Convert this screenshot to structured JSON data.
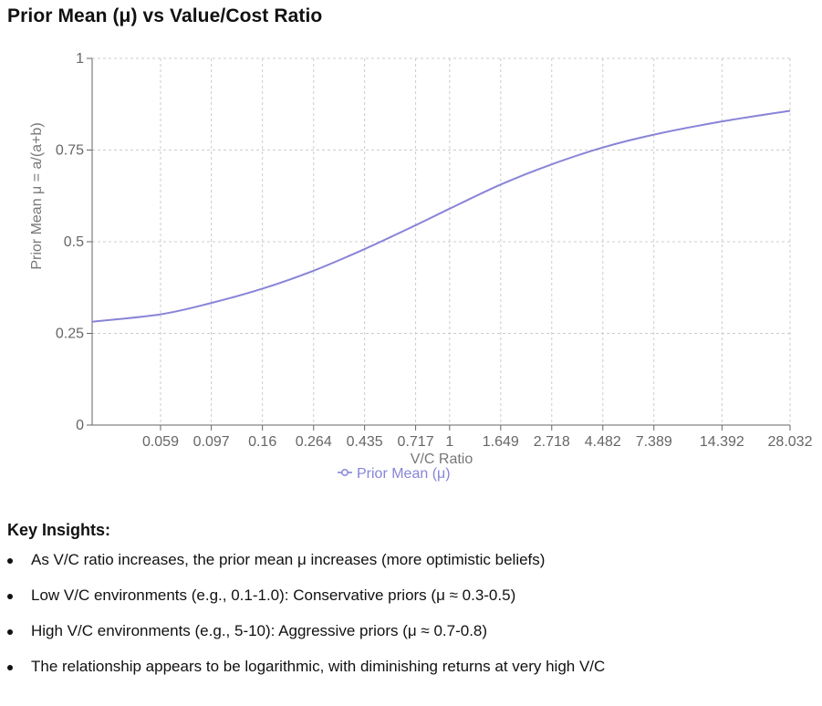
{
  "page": {
    "title": "Prior Mean (μ) vs Value/Cost Ratio"
  },
  "chart_data": {
    "type": "line",
    "title": "Prior Mean (μ) vs Value/Cost Ratio",
    "xlabel": "V/C Ratio",
    "ylabel": "Prior Mean μ = a/(a+b)",
    "x_scale": "log",
    "x_ticks": [
      "0.059",
      "0.097",
      "0.16",
      "0.264",
      "0.435",
      "0.717",
      "1",
      "1.649",
      "2.718",
      "4.482",
      "7.389",
      "14.392",
      "28.032"
    ],
    "y_ticks": [
      "0",
      "0.25",
      "0.5",
      "0.75",
      "1"
    ],
    "xlim": [
      0.0302,
      28.032
    ],
    "ylim": [
      0,
      1
    ],
    "grid": true,
    "legend": "bottom-center",
    "series": [
      {
        "name": "Prior Mean (μ)",
        "color": "#8884d8",
        "x": [
          0.0302,
          0.059,
          0.097,
          0.16,
          0.264,
          0.435,
          0.717,
          1,
          1.649,
          2.718,
          4.482,
          7.389,
          14.392,
          28.032
        ],
        "y": [
          0.282,
          0.302,
          0.333,
          0.372,
          0.421,
          0.48,
          0.545,
          0.59,
          0.656,
          0.711,
          0.757,
          0.792,
          0.828,
          0.857
        ]
      }
    ]
  },
  "insights": {
    "title": "Key Insights:",
    "items": [
      "As V/C ratio increases, the prior mean μ increases (more optimistic beliefs)",
      "Low V/C environments (e.g., 0.1-1.0): Conservative priors (μ ≈ 0.3-0.5)",
      "High V/C environments (e.g., 5-10): Aggressive priors (μ ≈ 0.7-0.8)",
      "The relationship appears to be logarithmic, with diminishing returns at very high V/C"
    ]
  }
}
